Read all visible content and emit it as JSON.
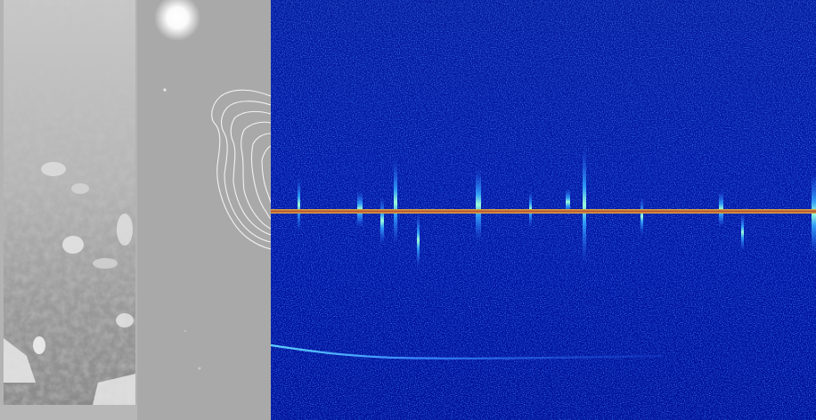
{
  "panels": [
    {
      "name": "grayscale-photo",
      "kind": "image"
    },
    {
      "name": "contour-overlay",
      "kind": "image"
    },
    {
      "name": "spectrogram",
      "kind": "image"
    }
  ],
  "colors": {
    "page_bg": "#b9b9b9",
    "photo_bg": "#bfbfbf",
    "contour_panel_bg": "#aaaaaa",
    "contour_lines": "#f2f2f2",
    "spectrogram_bg": "#00109a",
    "spectrogram_noise": "#1640d0",
    "spectrogram_hot": "#7fffe0",
    "marker_line": "#d9a040",
    "marker_line_core": "#b0453a"
  },
  "spectrogram": {
    "marker": {
      "type": "horizontal-line",
      "color": "#d9a040"
    }
  }
}
